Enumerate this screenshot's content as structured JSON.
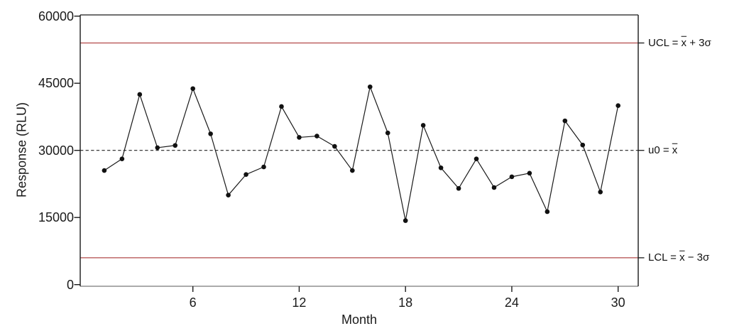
{
  "chart_data": {
    "type": "line",
    "title": "",
    "xlabel": "Month",
    "ylabel": "Response (RLU)",
    "x": [
      1,
      2,
      3,
      4,
      5,
      6,
      7,
      8,
      9,
      10,
      11,
      12,
      13,
      14,
      15,
      16,
      17,
      18,
      19,
      20,
      21,
      22,
      23,
      24,
      25,
      26,
      27,
      28,
      29,
      30
    ],
    "values": [
      25500,
      28100,
      42500,
      30600,
      31100,
      43800,
      33700,
      20000,
      24600,
      26300,
      39800,
      32900,
      33200,
      30900,
      25500,
      44200,
      33900,
      14300,
      35600,
      26100,
      21500,
      28100,
      21700,
      24100,
      24900,
      16300,
      36600,
      31200,
      20700,
      40000
    ],
    "xlim": [
      0.5,
      31.2
    ],
    "ylim": [
      0,
      60000
    ],
    "xticks": [
      6,
      12,
      18,
      24,
      30
    ],
    "xtick_labels": [
      "6",
      "12",
      "18",
      "24",
      "30"
    ],
    "yticks": [
      0,
      15000,
      30000,
      45000,
      60000
    ],
    "ytick_labels": [
      "0",
      "15000",
      "30000",
      "45000",
      "60000"
    ],
    "grid": false,
    "legend_position": "none",
    "marker": "filled-circle",
    "series_color": "#1a1a1a",
    "axis_color": "#1a1a1a",
    "annotations": {
      "ucl": {
        "value": 54000,
        "label": "UCL = x̄ + 3σ",
        "prefix": "UCL = ",
        "xbar": "x",
        "suffix": " + 3σ",
        "color": "#b24a4a",
        "style": "solid"
      },
      "center": {
        "value": 30000,
        "label": "u0 = x̄",
        "prefix": "u0 = ",
        "xbar": "x",
        "suffix": "",
        "color": "#222222",
        "style": "dashed"
      },
      "lcl": {
        "value": 6000,
        "label": "LCL = x̄ − 3σ",
        "prefix": "LCL = ",
        "xbar": "x",
        "suffix": " − 3σ",
        "color": "#b24a4a",
        "style": "solid"
      }
    }
  }
}
